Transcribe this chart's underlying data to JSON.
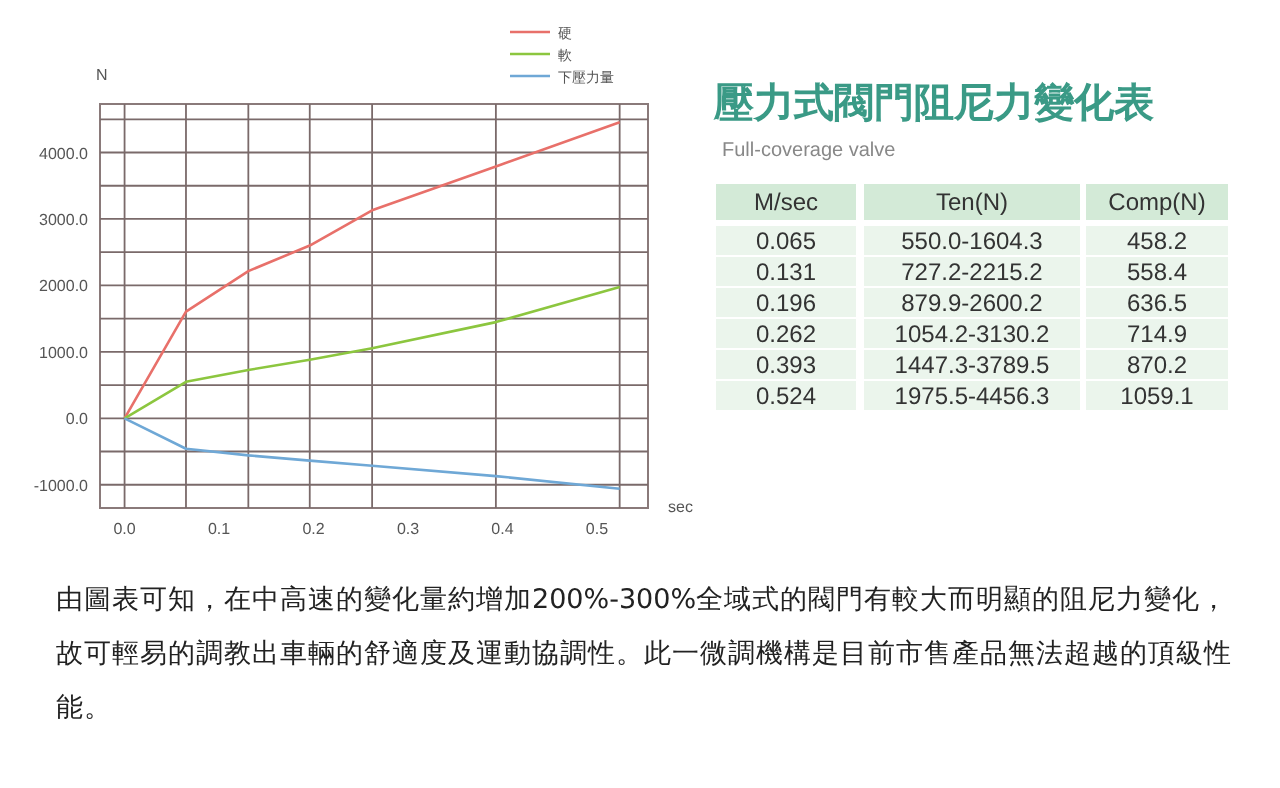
{
  "chart_data": [
    {
      "type": "line",
      "ylabel": "N",
      "xlabel": "sec",
      "x": [
        0,
        0.065,
        0.131,
        0.196,
        0.262,
        0.393,
        0.524
      ],
      "series": [
        {
          "name": "硬",
          "color": "#e8706a",
          "values": [
            0,
            1604.3,
            2215.2,
            2600.2,
            3130.2,
            3789.5,
            4456.3
          ]
        },
        {
          "name": "軟",
          "color": "#8cc63f",
          "values": [
            0,
            550.0,
            727.2,
            879.9,
            1054.2,
            1447.3,
            1975.5
          ]
        },
        {
          "name": "下壓力量",
          "color": "#6fa8d6",
          "values": [
            0,
            -458.2,
            -558.4,
            -636.5,
            -714.9,
            -870.2,
            -1059.1
          ]
        }
      ],
      "xlim": [
        -0.026,
        0.554
      ],
      "ylim": [
        -1350,
        4730
      ],
      "xticks": [
        {
          "value": 0,
          "label": "0.0"
        },
        {
          "value": 0.1,
          "label": "0.1"
        },
        {
          "value": 0.2,
          "label": "0.2"
        },
        {
          "value": 0.3,
          "label": "0.3"
        },
        {
          "value": 0.4,
          "label": "0.4"
        },
        {
          "value": 0.5,
          "label": "0.5"
        }
      ],
      "yticks": [
        {
          "value": -1000,
          "label": "-1000.0"
        },
        {
          "value": -500,
          "label": null
        },
        {
          "value": 0,
          "label": "0.0"
        },
        {
          "value": 500,
          "label": null
        },
        {
          "value": 1000,
          "label": "1000.0"
        },
        {
          "value": 1500,
          "label": null
        },
        {
          "value": 2000,
          "label": "2000.0"
        },
        {
          "value": 2500,
          "label": null
        },
        {
          "value": 3000,
          "label": "3000.0"
        },
        {
          "value": 3500,
          "label": null
        },
        {
          "value": 4000,
          "label": "4000.0"
        },
        {
          "value": 4500,
          "label": null
        }
      ],
      "grid": true,
      "legend": "top right",
      "marker": "none",
      "line_style": "solid",
      "annotations": [
        "由圖表可知，在中高速的變化量約增加200%-300%全域式的閥門有較大而明顯的阻尼力變化，故可輕易的調教出車輛的舒適度及運動協調性。此一微調機構是目前市售產品無法超越的頂級性能。"
      ]
    },
    {
      "type": "other",
      "title": "壓力式閥門阻尼力變化表",
      "subtitle": "Full-coverage valve",
      "categories": [
        "M/sec",
        "Ten(N)",
        "Comp(N)"
      ],
      "cell_labels": [
        [
          "0.065",
          "550.0-1604.3",
          "458.2"
        ],
        [
          "0.131",
          "727.2-2215.2",
          "558.4"
        ],
        [
          "0.196",
          "879.9-2600.2",
          "636.5"
        ],
        [
          "0.262",
          "1054.2-3130.2",
          "714.9"
        ],
        [
          "0.393",
          "1447.3-3789.5",
          "870.2"
        ],
        [
          "0.524",
          "1975.5-4456.3",
          "1059.1"
        ]
      ]
    }
  ]
}
